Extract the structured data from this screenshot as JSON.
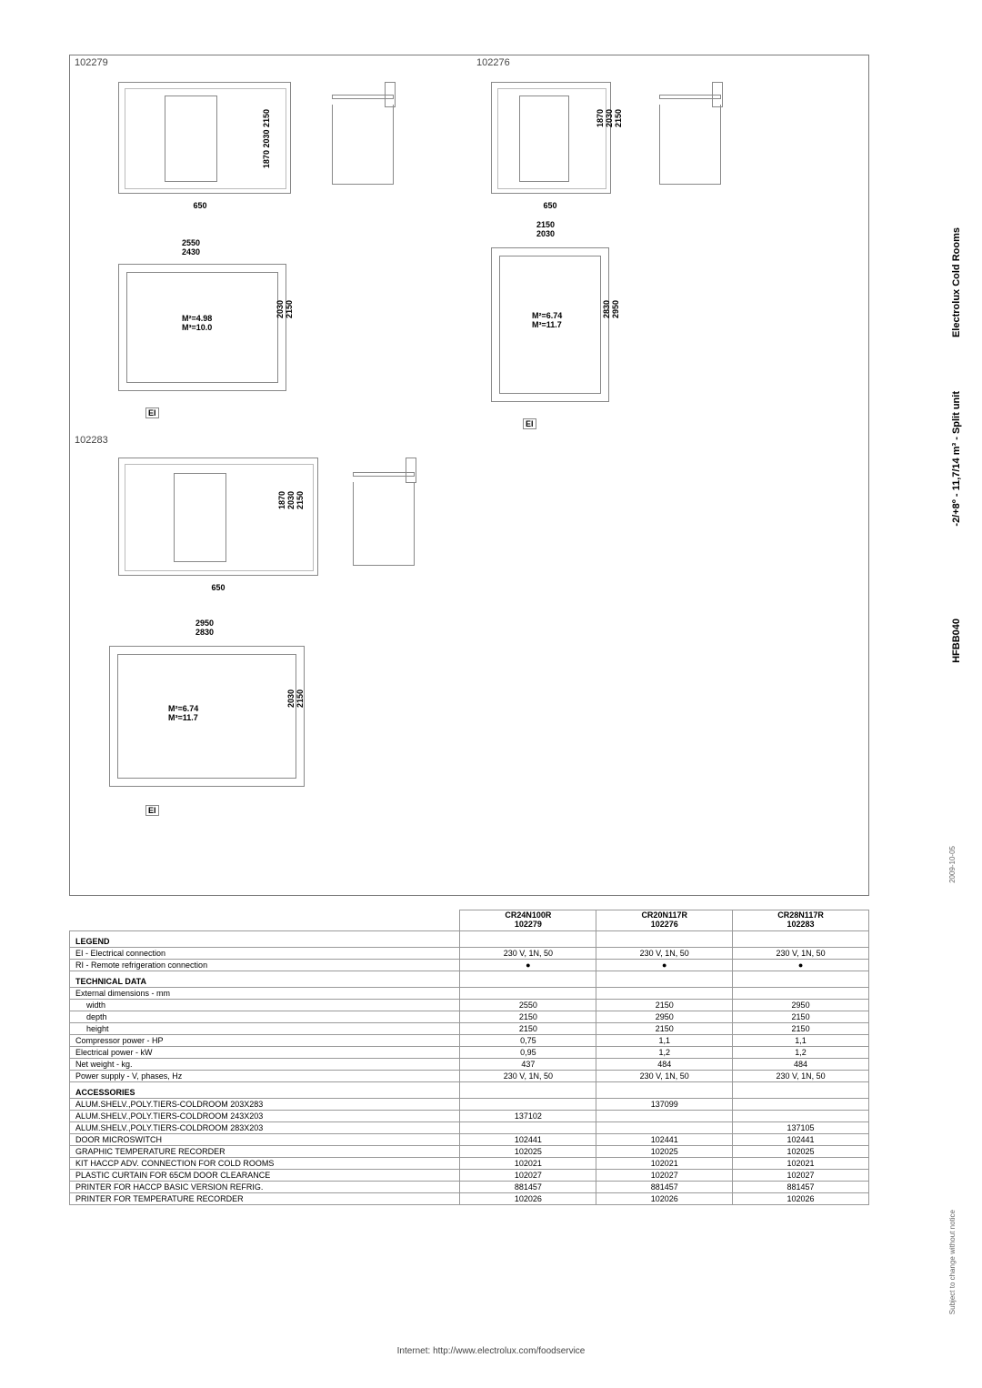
{
  "side": {
    "brand": "Electrolux Cold Rooms",
    "range": "-2/+8º - 11,7/14 m³ - Split unit",
    "code": "HFBB040",
    "date": "2009-10-05",
    "notice": "Subject to change without notice"
  },
  "drawing_labels": {
    "a": "102279",
    "b": "102276",
    "c": "102283"
  },
  "drawings": {
    "heights3": "1870\n2030\n2150",
    "heights2": "2030\n2150",
    "d650": "650",
    "d2150_2030": "2150\n2030",
    "d2550_2430": "2550\n2430",
    "d2950_2830": "2950\n2830",
    "d2830_2950v": "2830\n2950",
    "note498": "M²=4.98\nM³=10.0",
    "note674": "M²=6.74\nM³=11.7",
    "el": "EI"
  },
  "table": {
    "headers": {
      "h1": "CR24N100R\n102279",
      "h2": "CR20N117R\n102276",
      "h3": "CR28N117R\n102283"
    },
    "legend": "LEGEND",
    "rows_legend": [
      {
        "label": "EI - Electrical connection",
        "v": [
          "230 V, 1N, 50",
          "230 V, 1N, 50",
          "230 V, 1N, 50"
        ]
      },
      {
        "label": "RI - Remote refrigeration connection",
        "v": [
          "●",
          "●",
          "●"
        ]
      }
    ],
    "tech": "TECHNICAL DATA",
    "rows_tech": [
      {
        "label": "External dimensions - mm",
        "v": [
          "",
          "",
          ""
        ]
      },
      {
        "label": "width",
        "indent": true,
        "v": [
          "2550",
          "2150",
          "2950"
        ]
      },
      {
        "label": "depth",
        "indent": true,
        "v": [
          "2150",
          "2950",
          "2150"
        ]
      },
      {
        "label": "height",
        "indent": true,
        "v": [
          "2150",
          "2150",
          "2150"
        ]
      },
      {
        "label": "Compressor power - HP",
        "v": [
          "0,75",
          "1,1",
          "1,1"
        ]
      },
      {
        "label": "Electrical power - kW",
        "v": [
          "0,95",
          "1,2",
          "1,2"
        ]
      },
      {
        "label": "Net weight - kg.",
        "v": [
          "437",
          "484",
          "484"
        ]
      },
      {
        "label": "Power supply - V, phases, Hz",
        "v": [
          "230 V, 1N, 50",
          "230 V, 1N, 50",
          "230 V, 1N, 50"
        ]
      }
    ],
    "acc": "ACCESSORIES",
    "rows_acc": [
      {
        "label": "ALUM.SHELV.,POLY.TIERS-COLDROOM 203X283",
        "v": [
          "",
          "137099",
          ""
        ]
      },
      {
        "label": "ALUM.SHELV.,POLY.TIERS-COLDROOM 243X203",
        "v": [
          "137102",
          "",
          ""
        ]
      },
      {
        "label": "ALUM.SHELV.,POLY.TIERS-COLDROOM 283X203",
        "v": [
          "",
          "",
          "137105"
        ]
      },
      {
        "label": "DOOR MICROSWITCH",
        "v": [
          "102441",
          "102441",
          "102441"
        ]
      },
      {
        "label": "GRAPHIC TEMPERATURE RECORDER",
        "v": [
          "102025",
          "102025",
          "102025"
        ]
      },
      {
        "label": "KIT HACCP ADV. CONNECTION FOR COLD ROOMS",
        "v": [
          "102021",
          "102021",
          "102021"
        ]
      },
      {
        "label": "PLASTIC CURTAIN FOR 65CM DOOR CLEARANCE",
        "v": [
          "102027",
          "102027",
          "102027"
        ]
      },
      {
        "label": "PRINTER FOR HACCP BASIC VERSION REFRIG.",
        "v": [
          "881457",
          "881457",
          "881457"
        ]
      },
      {
        "label": "PRINTER FOR TEMPERATURE RECORDER",
        "v": [
          "102026",
          "102026",
          "102026"
        ]
      }
    ]
  },
  "footer": "Internet: http://www.electrolux.com/foodservice"
}
